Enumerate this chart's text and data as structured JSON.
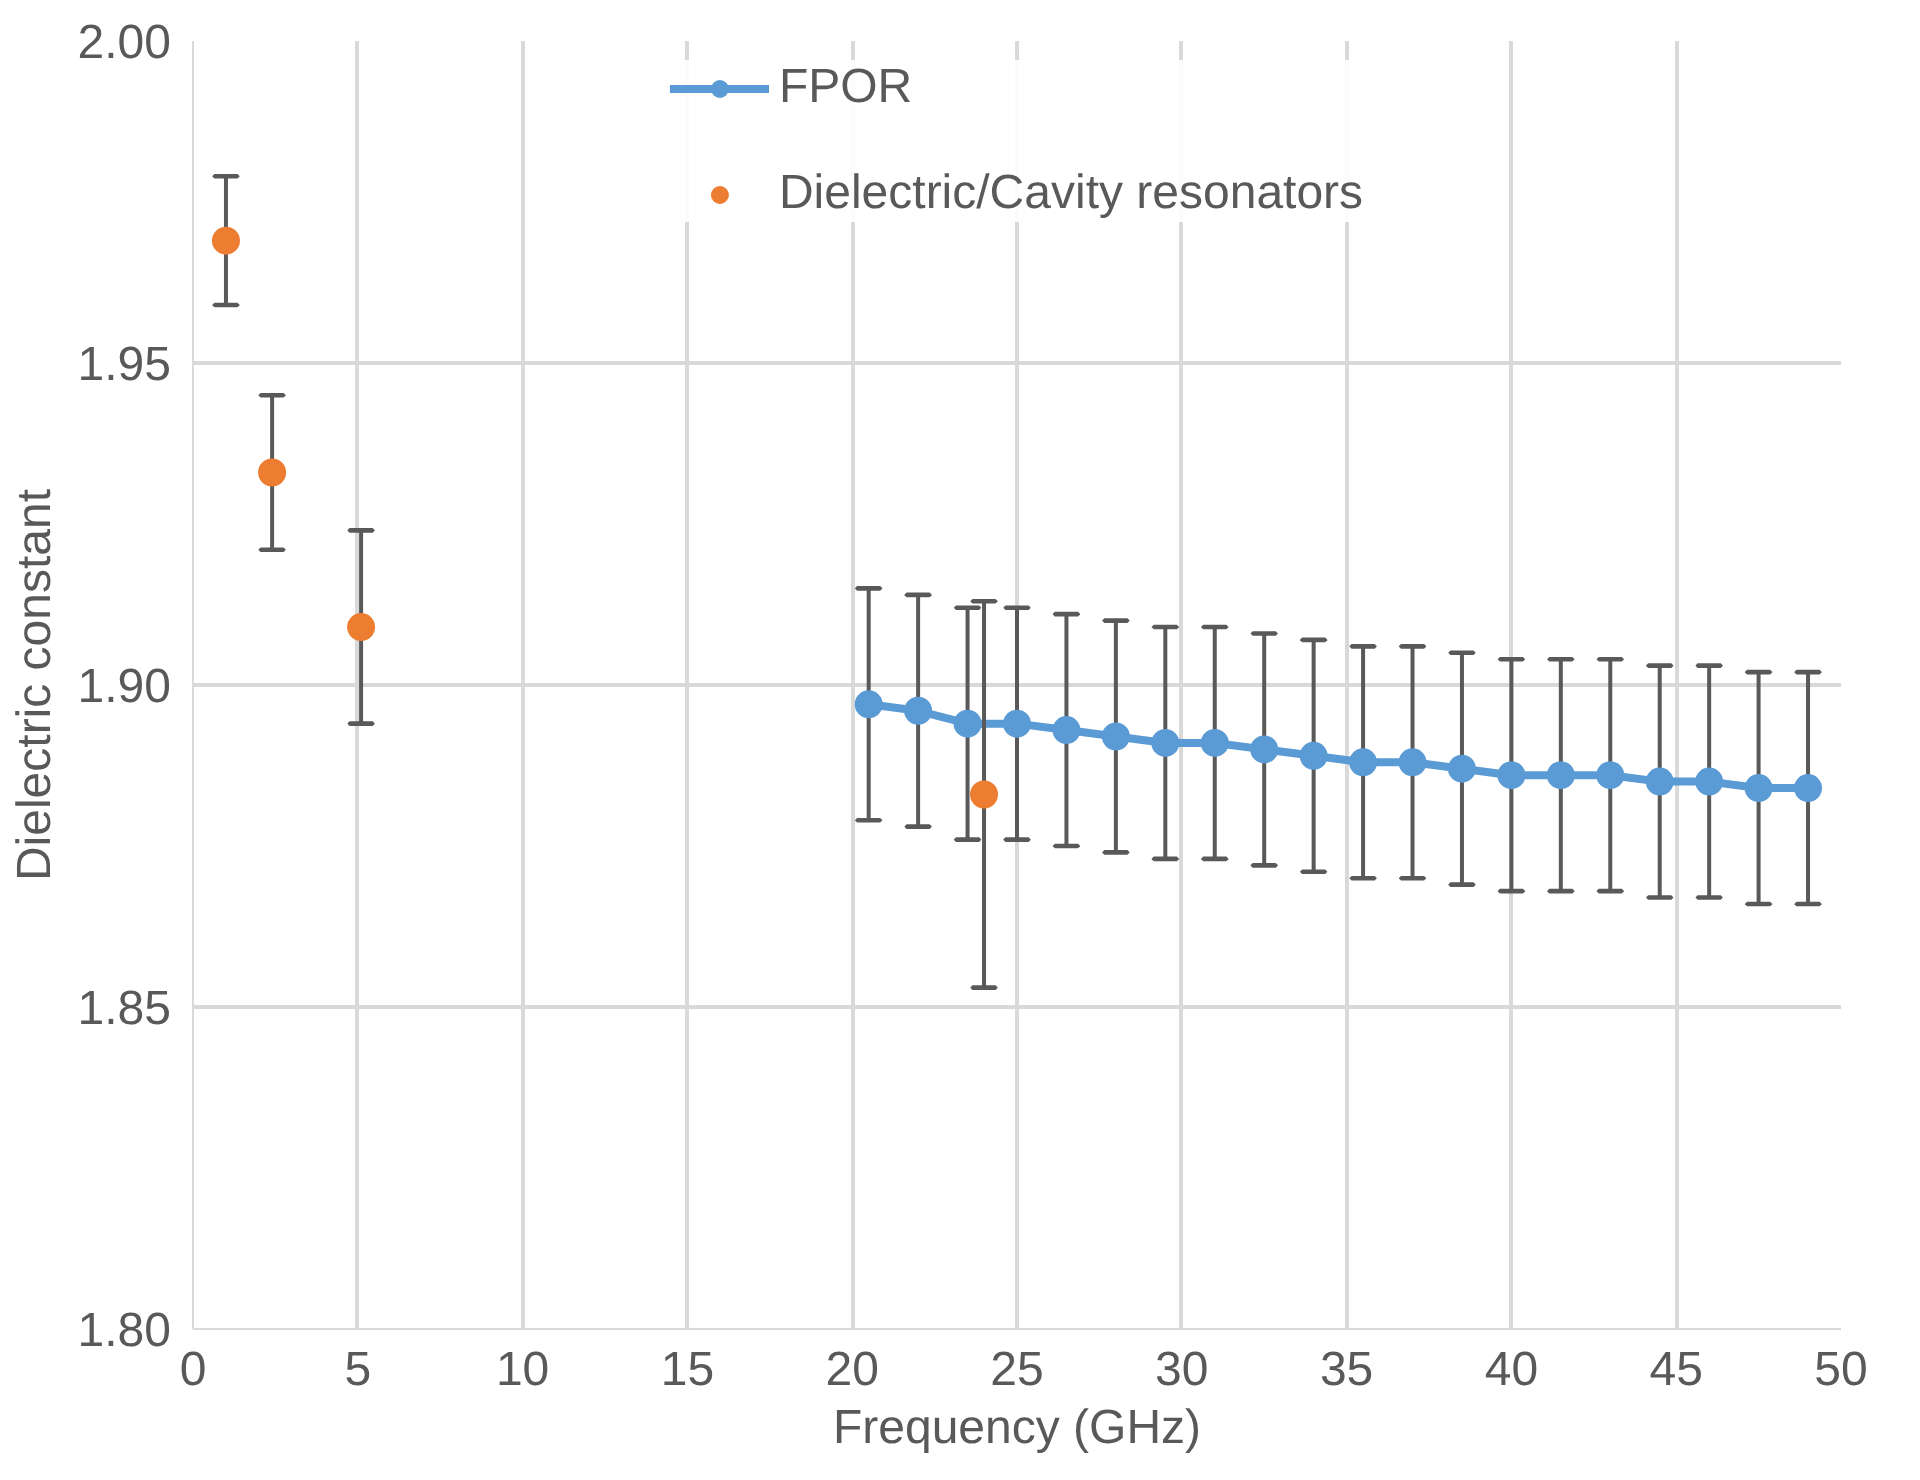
{
  "chart_data": {
    "type": "line",
    "xlabel": "Frequency (GHz)",
    "ylabel": "Dielectric constant",
    "xlim": [
      0,
      50
    ],
    "ylim": [
      1.8,
      2.0
    ],
    "xticks": [
      0,
      5,
      10,
      15,
      20,
      25,
      30,
      35,
      40,
      45,
      50
    ],
    "yticks": [
      {
        "value": 1.8,
        "label": "1.80"
      },
      {
        "value": 1.85,
        "label": "1.85"
      },
      {
        "value": 1.9,
        "label": "1.90"
      },
      {
        "value": 1.95,
        "label": "1.95"
      },
      {
        "value": 2.0,
        "label": "2.00"
      }
    ],
    "grid": true,
    "legend": "top",
    "marker": "circle",
    "line_style": "solid",
    "series": [
      {
        "name": "FPOR",
        "color": "#5b9bd5",
        "x": [
          20.5,
          22,
          23.5,
          25,
          26.5,
          28,
          29.5,
          31,
          32.5,
          34,
          35.5,
          37,
          38.5,
          40,
          41.5,
          43,
          44.5,
          46,
          47.5,
          49
        ],
        "values": [
          1.897,
          1.896,
          1.894,
          1.894,
          1.893,
          1.892,
          1.891,
          1.891,
          1.89,
          1.889,
          1.888,
          1.888,
          1.887,
          1.886,
          1.886,
          1.886,
          1.885,
          1.885,
          1.884,
          1.884
        ],
        "errors": [
          0.018,
          0.018,
          0.018,
          0.018,
          0.018,
          0.018,
          0.018,
          0.018,
          0.018,
          0.018,
          0.018,
          0.018,
          0.018,
          0.018,
          0.018,
          0.018,
          0.018,
          0.018,
          0.018,
          0.018
        ]
      },
      {
        "name": "Dielectric/Cavity resonators",
        "type": "scatter",
        "color": "#ed7d31",
        "x": [
          1,
          2.4,
          5.1,
          24
        ],
        "values": [
          1.969,
          1.933,
          1.909,
          1.883
        ],
        "errors": [
          0.01,
          0.012,
          0.015,
          0.03
        ]
      }
    ]
  }
}
